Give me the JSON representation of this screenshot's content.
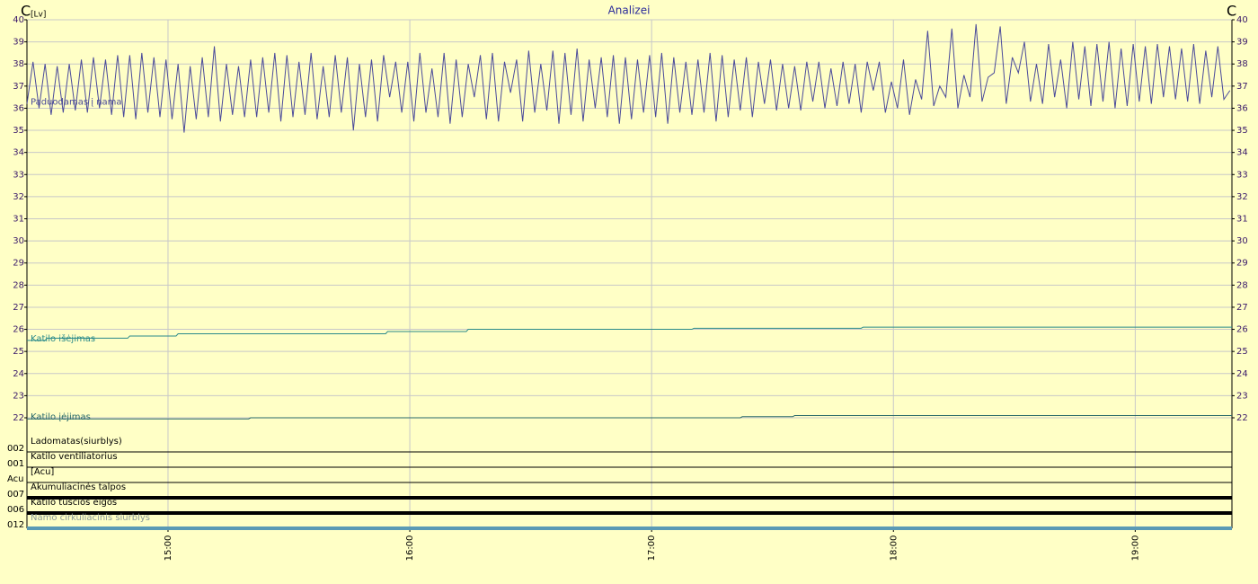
{
  "chart_data": {
    "type": "line",
    "title": "Analizei",
    "y_label_main": "C",
    "y_label_unit": "[Lv]",
    "y2_label": "C",
    "xlim": [
      865,
      1164
    ],
    "xticks": [
      {
        "value": 900,
        "label": "15:00"
      },
      {
        "value": 960,
        "label": "16:00"
      },
      {
        "value": 1020,
        "label": "17:00"
      },
      {
        "value": 1080,
        "label": "18:00"
      },
      {
        "value": 1140,
        "label": "19:00"
      }
    ],
    "ylim": [
      22,
      40
    ],
    "yticks": [
      22,
      23,
      24,
      25,
      26,
      27,
      28,
      29,
      30,
      31,
      32,
      33,
      34,
      35,
      36,
      37,
      38,
      39,
      40
    ],
    "grid": true,
    "series": [
      {
        "name": "Paduodamas į nama",
        "color": "#4a4a9a",
        "x": [
          865,
          866.5,
          868,
          869.5,
          871,
          872.5,
          874,
          875.5,
          877,
          878.5,
          880,
          881.5,
          883,
          884.5,
          886,
          887.5,
          889,
          890.5,
          892,
          893.5,
          895,
          896.5,
          898,
          899.5,
          901,
          902.5,
          904,
          905.5,
          907,
          908.5,
          910,
          911.5,
          913,
          914.5,
          916,
          917.5,
          919,
          920.5,
          922,
          923.5,
          925,
          926.5,
          928,
          929.5,
          931,
          932.5,
          934,
          935.5,
          937,
          938.5,
          940,
          941.5,
          943,
          944.5,
          946,
          947.5,
          949,
          950.5,
          952,
          953.5,
          955,
          956.5,
          958,
          959.5,
          961,
          962.5,
          964,
          965.5,
          967,
          968.5,
          970,
          971.5,
          973,
          974.5,
          976,
          977.5,
          979,
          980.5,
          982,
          983.5,
          985,
          986.5,
          988,
          989.5,
          991,
          992.5,
          994,
          995.5,
          997,
          998.5,
          1000,
          1001.5,
          1003,
          1004.5,
          1006,
          1007.5,
          1009,
          1010.5,
          1012,
          1013.5,
          1015,
          1016.5,
          1018,
          1019.5,
          1021,
          1022.5,
          1024,
          1025.5,
          1027,
          1028.5,
          1030,
          1031.5,
          1033,
          1034.5,
          1036,
          1037.5,
          1039,
          1040.5,
          1042,
          1043.5,
          1045,
          1046.5,
          1048,
          1049.5,
          1051,
          1052.5,
          1054,
          1055.5,
          1057,
          1058.5,
          1060,
          1061.5,
          1063,
          1064.5,
          1066,
          1067.5,
          1069,
          1070.5,
          1072,
          1073.5,
          1075,
          1076.5,
          1078,
          1079.5,
          1081,
          1082.5,
          1084,
          1085.5,
          1087,
          1088.5,
          1090,
          1091.5,
          1093,
          1094.5,
          1096,
          1097.5,
          1099,
          1100.5,
          1102,
          1103.5,
          1105,
          1106.5,
          1108,
          1109.5,
          1111,
          1112.5,
          1114,
          1115.5,
          1117,
          1118.5,
          1120,
          1121.5,
          1123,
          1124.5,
          1126,
          1127.5,
          1129,
          1130.5,
          1132,
          1133.5,
          1135,
          1136.5,
          1138,
          1139.5,
          1141,
          1142.5,
          1144,
          1145.5,
          1147,
          1148.5,
          1150,
          1151.5,
          1153,
          1154.5,
          1156,
          1157.5,
          1159,
          1160.5,
          1162,
          1163.5
        ],
        "values": [
          36.2,
          38.1,
          36.0,
          38.0,
          35.7,
          37.9,
          35.8,
          38.0,
          35.9,
          38.2,
          35.8,
          38.3,
          36.0,
          38.2,
          35.7,
          38.4,
          35.6,
          38.4,
          35.5,
          38.5,
          35.8,
          38.3,
          35.6,
          38.2,
          35.5,
          38.0,
          34.9,
          37.9,
          35.5,
          38.3,
          35.6,
          38.8,
          35.4,
          38.0,
          35.7,
          37.9,
          35.6,
          38.2,
          35.6,
          38.3,
          35.8,
          38.5,
          35.4,
          38.4,
          35.6,
          38.1,
          35.7,
          38.5,
          35.5,
          37.9,
          35.6,
          38.4,
          35.8,
          38.3,
          35.0,
          38.0,
          35.6,
          38.2,
          35.4,
          38.4,
          36.5,
          38.1,
          35.8,
          38.1,
          35.4,
          38.5,
          35.8,
          37.8,
          35.6,
          38.5,
          35.3,
          38.2,
          35.6,
          38.0,
          36.5,
          38.4,
          35.5,
          38.5,
          35.4,
          38.1,
          36.7,
          38.2,
          35.4,
          38.6,
          35.8,
          38.0,
          35.9,
          38.6,
          35.3,
          38.5,
          35.7,
          38.7,
          35.4,
          38.2,
          36.0,
          38.3,
          35.6,
          38.4,
          35.3,
          38.3,
          35.5,
          38.2,
          35.8,
          38.4,
          35.6,
          38.5,
          35.3,
          38.3,
          35.8,
          38.1,
          35.7,
          38.2,
          35.8,
          38.5,
          35.4,
          38.4,
          35.6,
          38.2,
          35.9,
          38.3,
          35.6,
          38.1,
          36.2,
          38.2,
          35.9,
          38.0,
          36.0,
          37.9,
          35.9,
          38.1,
          36.3,
          38.1,
          36.0,
          37.8,
          36.1,
          38.1,
          36.2,
          38.0,
          35.8,
          38.1,
          36.8,
          38.1,
          35.8,
          37.2,
          36.0,
          38.2,
          35.7,
          37.3,
          36.4,
          39.5,
          36.1,
          37.0,
          36.5,
          39.6,
          36.0,
          37.5,
          36.5,
          39.8,
          36.3,
          37.4,
          37.6,
          39.7,
          36.2,
          38.3,
          37.6,
          39.0,
          36.3,
          38.0,
          36.2,
          38.9,
          36.5,
          38.2,
          36.0,
          39.0,
          36.4,
          38.8,
          36.1,
          38.9,
          36.3,
          39.0,
          36.0,
          38.7,
          36.1,
          38.9,
          36.3,
          38.8,
          36.2,
          38.9,
          36.5,
          38.8,
          36.4,
          38.7,
          36.3,
          38.9,
          36.2,
          38.6,
          36.5,
          38.8,
          36.4,
          36.8
        ]
      },
      {
        "name": "Katilo išėjimas",
        "color": "#2a8a8a",
        "x": [
          865,
          869.5,
          870,
          890,
          890.5,
          902,
          902.5,
          954,
          954.5,
          974,
          974.5,
          1030,
          1030.5,
          1072,
          1072.5,
          1164
        ],
        "values": [
          25.5,
          25.5,
          25.6,
          25.6,
          25.7,
          25.7,
          25.8,
          25.8,
          25.9,
          25.9,
          26.0,
          26.0,
          26.05,
          26.05,
          26.1,
          26.1
        ]
      },
      {
        "name": "Katilo įėjimas",
        "color": "#2a6a6a",
        "x": [
          865,
          920,
          920.5,
          1042,
          1042.5,
          1055,
          1055.5,
          1164
        ],
        "values": [
          21.95,
          21.95,
          22.0,
          22.0,
          22.05,
          22.05,
          22.1,
          22.1
        ]
      }
    ],
    "channels": [
      {
        "code": "002",
        "name": "Ladomatas(siurblys)",
        "state": 0,
        "color": "#000000",
        "text_color": "#000000"
      },
      {
        "code": "001",
        "name": "Katilo ventiliatorius",
        "state": 0,
        "color": "#000000",
        "text_color": "#000000"
      },
      {
        "code": "Acu",
        "name": "[Acu]",
        "state": 0,
        "color": "#000000",
        "text_color": "#000000"
      },
      {
        "code": "007",
        "name": "Akumuliacinės talpos",
        "state": 1,
        "color": "#000000",
        "text_color": "#000000"
      },
      {
        "code": "006",
        "name": "Katilo tuscios eigos",
        "state": 1,
        "color": "#000000",
        "text_color": "#000000"
      },
      {
        "code": "012",
        "name": "Namo cirkuliacinis siurblys",
        "state": 1,
        "color": "#5a9ab5",
        "text_color": "#8a9a9a"
      }
    ]
  }
}
